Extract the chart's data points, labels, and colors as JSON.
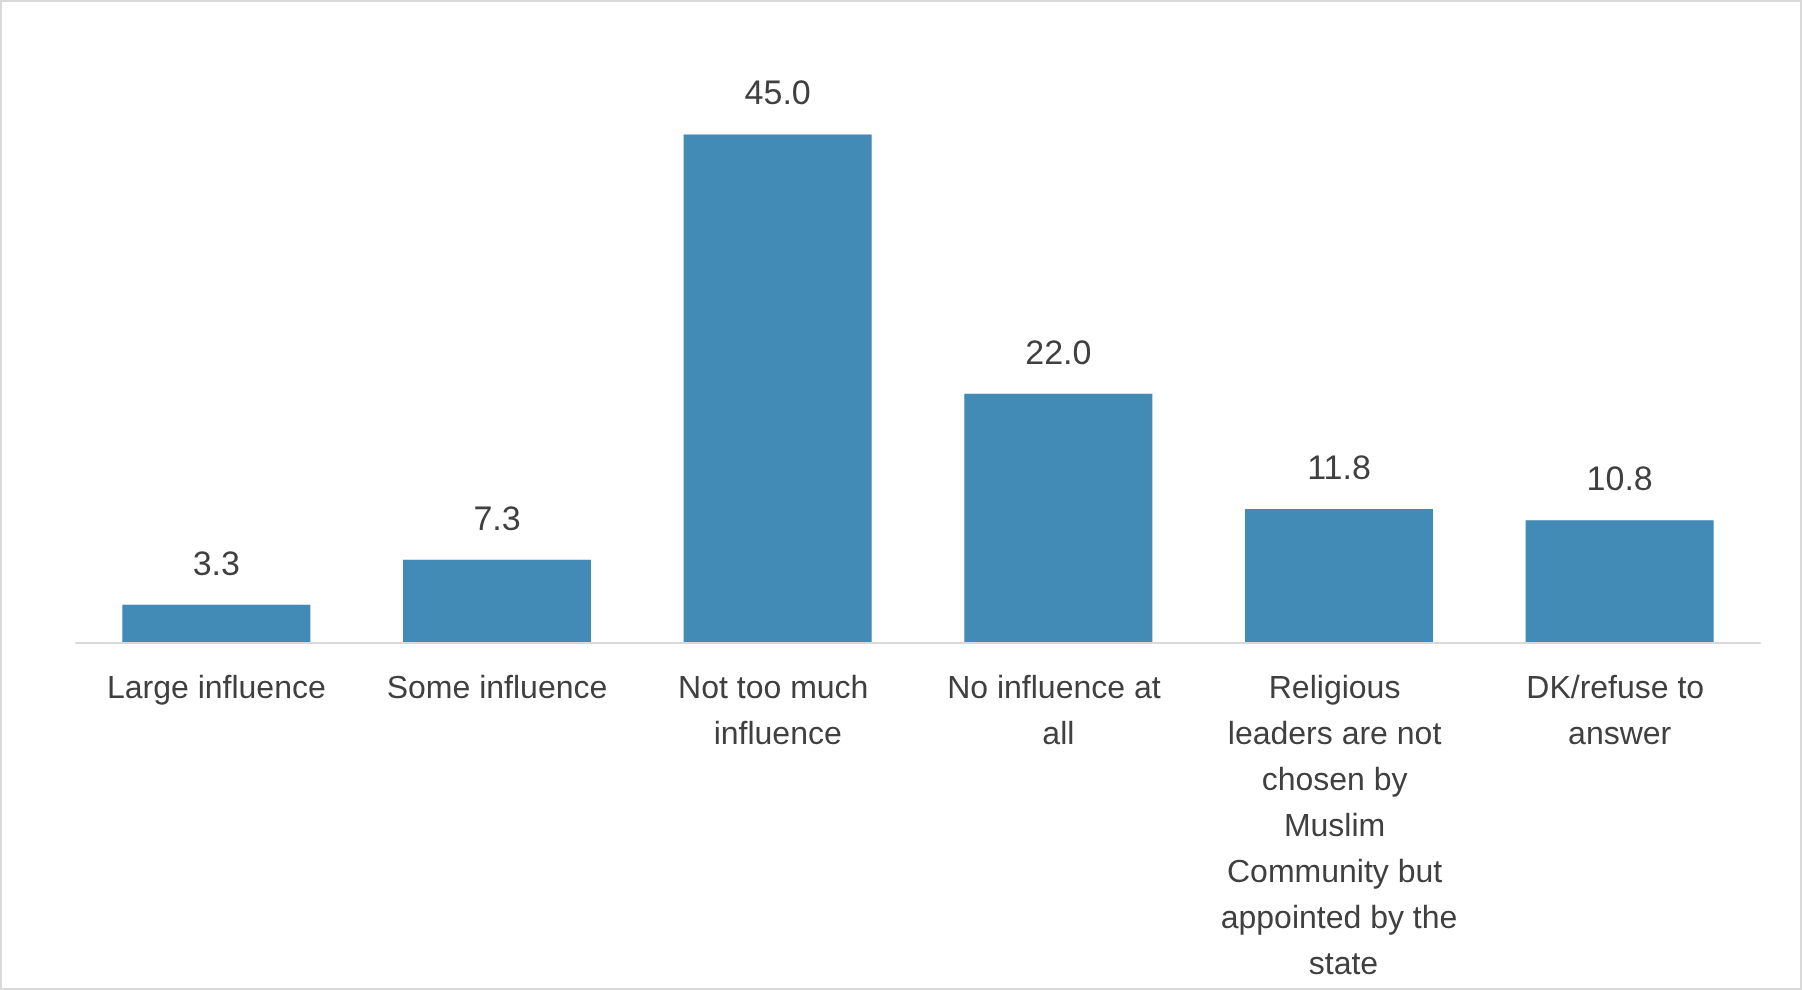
{
  "chart_data": {
    "type": "bar",
    "categories": [
      "Large influence",
      "Some influence",
      "Not too much influence",
      "No influence at all",
      "Religious leaders are not chosen by Muslim Community but appointed by the state",
      "DK/refuse to answer"
    ],
    "values": [
      3.3,
      7.3,
      45,
      22,
      11.8,
      10.8
    ],
    "value_labels": [
      "3.3",
      "7.3",
      "45.0",
      "22.0",
      "11.8",
      "10.8"
    ],
    "color": "#428bb7"
  }
}
